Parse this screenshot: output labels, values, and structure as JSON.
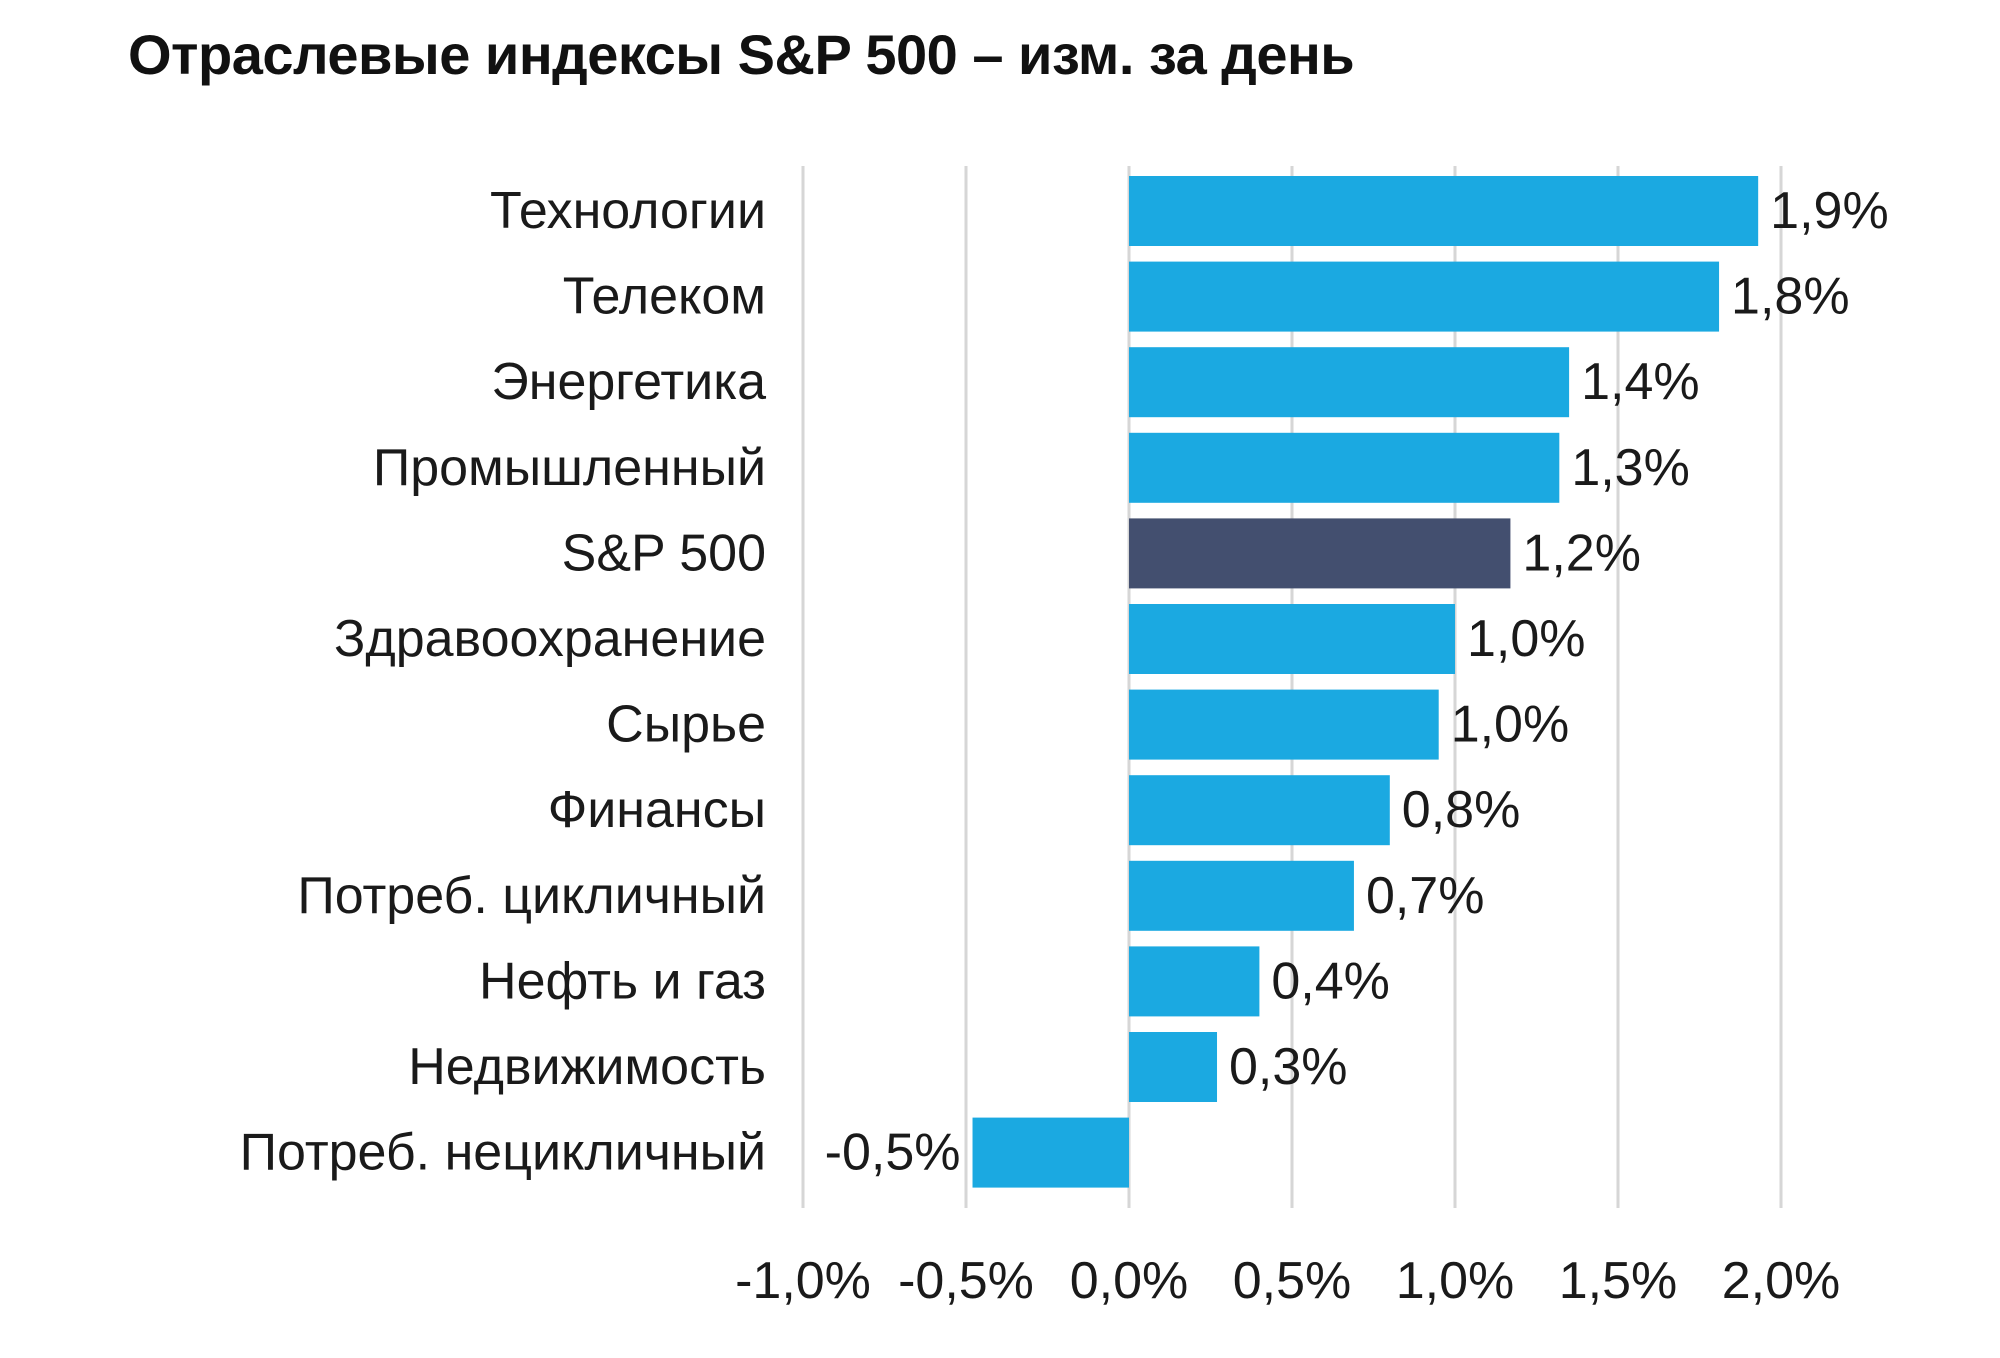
{
  "title": "Отраслевые индексы S&P 500 – изм. за день",
  "chart_data": {
    "type": "bar",
    "orientation": "horizontal",
    "title": "Отраслевые индексы S&P 500 – изм. за день",
    "xlabel": "",
    "ylabel": "",
    "xlim": [
      -1.0,
      2.0
    ],
    "grid": true,
    "legend": "none",
    "categories": [
      "Технологии",
      "Телеком",
      "Энергетика",
      "Промышленный",
      "S&P 500",
      "Здравоохранение",
      "Сырье",
      "Финансы",
      "Потреб. цикличный",
      "Нефть и газ",
      "Недвижимость",
      "Потреб. нецикличный"
    ],
    "values": [
      1.93,
      1.81,
      1.35,
      1.32,
      1.17,
      1.0,
      0.95,
      0.8,
      0.69,
      0.4,
      0.27,
      -0.48
    ],
    "value_labels": [
      "1,9%",
      "1,8%",
      "1,4%",
      "1,3%",
      "1,2%",
      "1,0%",
      "1,0%",
      "0,8%",
      "0,7%",
      "0,4%",
      "0,3%",
      "-0,5%"
    ],
    "highlight_category": "S&P 500",
    "x_ticks": [
      -1.0,
      -0.5,
      0.0,
      0.5,
      1.0,
      1.5,
      2.0
    ],
    "x_tick_labels": [
      "-1,0%",
      "-0,5%",
      "0,0%",
      "0,5%",
      "1,0%",
      "1,5%",
      "2,0%"
    ],
    "colors": {
      "bar": "#1BA9E1",
      "highlight": "#434F6F",
      "grid": "#d6d6d6",
      "text": "#1a1a1a"
    }
  }
}
